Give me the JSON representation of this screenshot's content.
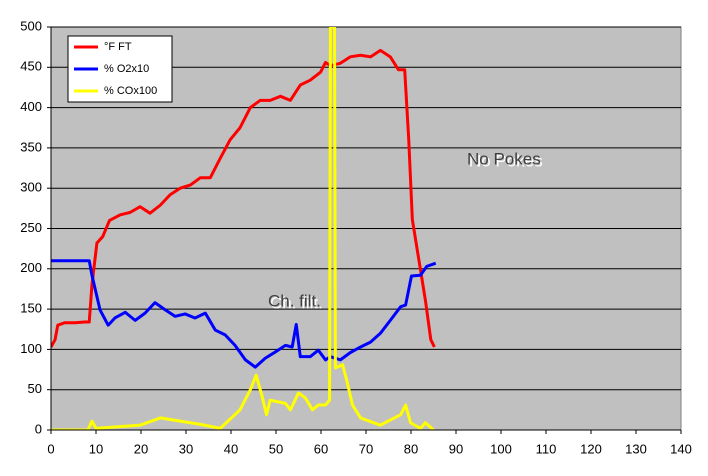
{
  "chart_data": {
    "type": "line",
    "xlim": [
      0,
      140
    ],
    "xticks": [
      0,
      10,
      20,
      30,
      40,
      50,
      60,
      70,
      80,
      90,
      100,
      110,
      120,
      130,
      140
    ],
    "ylim": [
      0,
      500
    ],
    "yticks": [
      0,
      50,
      100,
      150,
      200,
      250,
      300,
      350,
      400,
      450,
      500
    ],
    "grid": true,
    "legend": "top-left",
    "annotations": [
      "No Pokes",
      "Ch. filt."
    ],
    "series": [
      {
        "name": "°F FT",
        "color": "#ff0000",
        "x": [
          0,
          0.9,
          1.5,
          3,
          5.3,
          7.5,
          8.5,
          9.1,
          10.2,
          11.5,
          13,
          15.4,
          17.6,
          19.8,
          22,
          24.3,
          26.5,
          28.7,
          31,
          33.2,
          35.4,
          37.6,
          39.8,
          42,
          44.3,
          46.5,
          48.7,
          51,
          53.2,
          55.4,
          57.6,
          59.9,
          61,
          62.1,
          64.3,
          66.5,
          68.8,
          71,
          73.2,
          75.4,
          77.2,
          78.6,
          79.5,
          80.3,
          82.1,
          83.2,
          84.4,
          85.2
        ],
        "values": [
          103,
          112,
          130,
          133,
          133,
          134,
          134,
          180,
          232,
          240,
          260,
          267,
          270,
          277,
          269,
          279,
          292,
          300,
          304,
          313,
          313,
          337,
          360,
          375,
          400,
          409,
          409,
          414,
          409,
          428,
          434,
          444,
          456,
          452,
          455,
          463,
          465,
          463,
          471,
          463,
          447,
          447,
          360,
          261,
          199,
          161,
          112,
          103
        ]
      },
      {
        "name": "% O2x10",
        "color": "#0000ff",
        "x": [
          0,
          6.5,
          8.5,
          9.1,
          10.9,
          12.7,
          14.2,
          16.5,
          18.7,
          20.9,
          23.1,
          25.4,
          27.6,
          29.8,
          32,
          34.3,
          36.5,
          38.7,
          40.9,
          43.2,
          45.4,
          47.6,
          49.9,
          52.1,
          53.6,
          54.5,
          55.4,
          57.6,
          59.4,
          61,
          62.1,
          64.3,
          66.5,
          68.8,
          71,
          73.2,
          75.4,
          77.7,
          78.8,
          80.1,
          82.1,
          83.5,
          85.5
        ],
        "values": [
          210,
          210,
          210,
          192,
          149,
          130,
          139,
          146,
          136,
          145,
          158,
          149,
          141,
          144,
          139,
          145,
          124,
          118,
          105,
          87,
          78,
          89,
          97,
          105,
          103,
          131,
          91,
          91,
          99,
          87,
          91,
          87,
          96,
          103,
          109,
          120,
          136,
          153,
          155,
          191,
          192,
          203,
          207
        ]
      },
      {
        "name": "% COx100",
        "color": "#ffff00",
        "x": [
          0,
          8.2,
          9.1,
          10,
          19.8,
          24.3,
          28.7,
          33.2,
          37.6,
          42,
          44.3,
          45.6,
          46.9,
          47.9,
          48.7,
          52.1,
          53.2,
          55,
          56.5,
          58.1,
          59.4,
          61,
          61.9,
          62.1,
          63,
          63.2,
          64.8,
          65.7,
          67,
          68.8,
          73.2,
          77.7,
          78.8,
          79.9,
          82.1,
          83.2,
          85
        ],
        "values": [
          0,
          0,
          11,
          2,
          6,
          15,
          11,
          7,
          2,
          25,
          50,
          68,
          42,
          19,
          37,
          33,
          25,
          46,
          40,
          25,
          31,
          31,
          37,
          500,
          500,
          77,
          81,
          62,
          31,
          15,
          6,
          19,
          31,
          9,
          2,
          9,
          0
        ]
      }
    ]
  }
}
